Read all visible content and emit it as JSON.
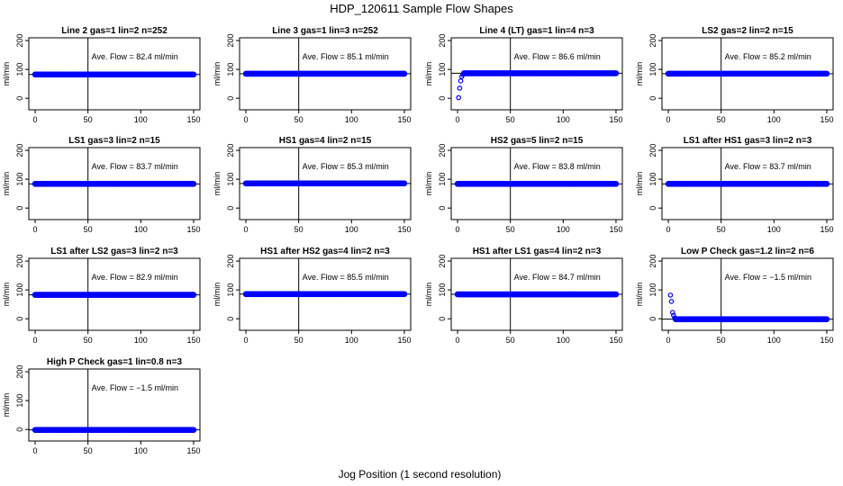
{
  "figure": {
    "title": "HDP_120611  Sample Flow Shapes",
    "xlabel": "Jog Position (1 second resolution)"
  },
  "colors": {
    "points": "#0000ff",
    "lines": "#000000",
    "background": "#ffffff"
  },
  "chart_data": [
    {
      "type": "scatter",
      "title": "Line 2 gas=1 lin=2 n=252",
      "ylabel": "ml/min",
      "annotation": "Ave. Flow =  82.4  ml/min",
      "xlim": [
        0,
        150
      ],
      "ylim": [
        0,
        200
      ],
      "xticks": [
        0,
        50,
        100,
        150
      ],
      "yticks": [
        0,
        100,
        200
      ],
      "vline": 50,
      "hline": 82.4,
      "ramp": []
    },
    {
      "type": "scatter",
      "title": "Line 3 gas=1 lin=3 n=252",
      "ylabel": "ml/min",
      "annotation": "Ave. Flow =  85.1  ml/min",
      "xlim": [
        0,
        150
      ],
      "ylim": [
        0,
        200
      ],
      "xticks": [
        0,
        50,
        100,
        150
      ],
      "yticks": [
        0,
        100,
        200
      ],
      "vline": 50,
      "hline": 85.1,
      "ramp": []
    },
    {
      "type": "scatter",
      "title": "Line 4 (LT) gas=1 lin=4 n=3",
      "ylabel": "ml/min",
      "annotation": "Ave. Flow =  86.6  ml/min",
      "xlim": [
        0,
        150
      ],
      "ylim": [
        0,
        200
      ],
      "xticks": [
        0,
        50,
        100,
        150
      ],
      "yticks": [
        0,
        100,
        200
      ],
      "vline": 50,
      "hline": 86.6,
      "ramp": [
        [
          1,
          2
        ],
        [
          2,
          35
        ],
        [
          3,
          60
        ],
        [
          4,
          75
        ],
        [
          5,
          82
        ]
      ]
    },
    {
      "type": "scatter",
      "title": "LS2 gas=2 lin=2 n=15",
      "ylabel": "ml/min",
      "annotation": "Ave. Flow =  85.2  ml/min",
      "xlim": [
        0,
        150
      ],
      "ylim": [
        0,
        200
      ],
      "xticks": [
        0,
        50,
        100,
        150
      ],
      "yticks": [
        0,
        100,
        200
      ],
      "vline": 50,
      "hline": 85.2,
      "ramp": []
    },
    {
      "type": "scatter",
      "title": "LS1 gas=3 lin=2 n=15",
      "ylabel": "ml/min",
      "annotation": "Ave. Flow =  83.7  ml/min",
      "xlim": [
        0,
        150
      ],
      "ylim": [
        0,
        200
      ],
      "xticks": [
        0,
        50,
        100,
        150
      ],
      "yticks": [
        0,
        100,
        200
      ],
      "vline": 50,
      "hline": 83.7,
      "ramp": []
    },
    {
      "type": "scatter",
      "title": "HS1 gas=4 lin=2 n=15",
      "ylabel": "ml/min",
      "annotation": "Ave. Flow =  85.3  ml/min",
      "xlim": [
        0,
        150
      ],
      "ylim": [
        0,
        200
      ],
      "xticks": [
        0,
        50,
        100,
        150
      ],
      "yticks": [
        0,
        100,
        200
      ],
      "vline": 50,
      "hline": 85.3,
      "ramp": []
    },
    {
      "type": "scatter",
      "title": "HS2 gas=5 lin=2 n=15",
      "ylabel": "ml/min",
      "annotation": "Ave. Flow =  83.8  ml/min",
      "xlim": [
        0,
        150
      ],
      "ylim": [
        0,
        200
      ],
      "xticks": [
        0,
        50,
        100,
        150
      ],
      "yticks": [
        0,
        100,
        200
      ],
      "vline": 50,
      "hline": 83.8,
      "ramp": []
    },
    {
      "type": "scatter",
      "title": "LS1 after HS1 gas=3 lin=2 n=3",
      "ylabel": "ml/min",
      "annotation": "Ave. Flow =  83.7  ml/min",
      "xlim": [
        0,
        150
      ],
      "ylim": [
        0,
        200
      ],
      "xticks": [
        0,
        50,
        100,
        150
      ],
      "yticks": [
        0,
        100,
        200
      ],
      "vline": 50,
      "hline": 83.7,
      "ramp": []
    },
    {
      "type": "scatter",
      "title": "LS1 after LS2 gas=3 lin=2 n=3",
      "ylabel": "ml/min",
      "annotation": "Ave. Flow =  82.9  ml/min",
      "xlim": [
        0,
        150
      ],
      "ylim": [
        0,
        200
      ],
      "xticks": [
        0,
        50,
        100,
        150
      ],
      "yticks": [
        0,
        100,
        200
      ],
      "vline": 50,
      "hline": 82.9,
      "ramp": []
    },
    {
      "type": "scatter",
      "title": "HS1 after HS2 gas=4 lin=2 n=3",
      "ylabel": "ml/min",
      "annotation": "Ave. Flow =  85.5  ml/min",
      "xlim": [
        0,
        150
      ],
      "ylim": [
        0,
        200
      ],
      "xticks": [
        0,
        50,
        100,
        150
      ],
      "yticks": [
        0,
        100,
        200
      ],
      "vline": 50,
      "hline": 85.5,
      "ramp": []
    },
    {
      "type": "scatter",
      "title": "HS1 after LS1 gas=4 lin=2 n=3",
      "ylabel": "ml/min",
      "annotation": "Ave. Flow =  84.7  ml/min",
      "xlim": [
        0,
        150
      ],
      "ylim": [
        0,
        200
      ],
      "xticks": [
        0,
        50,
        100,
        150
      ],
      "yticks": [
        0,
        100,
        200
      ],
      "vline": 50,
      "hline": 84.7,
      "ramp": []
    },
    {
      "type": "scatter",
      "title": "Low P Check gas=1.2 lin=2 n=6",
      "ylabel": "ml/min",
      "annotation": "Ave. Flow =  −1.5  ml/min",
      "xlim": [
        0,
        150
      ],
      "ylim": [
        0,
        200
      ],
      "xticks": [
        0,
        50,
        100,
        150
      ],
      "yticks": [
        0,
        100,
        200
      ],
      "vline": 50,
      "hline": -1.5,
      "ramp": [
        [
          2,
          82
        ],
        [
          3,
          60
        ],
        [
          4,
          22
        ],
        [
          5,
          12
        ],
        [
          6,
          3
        ]
      ]
    },
    {
      "type": "scatter",
      "title": "High P Check gas=1 lin=0.8 n=3",
      "ylabel": "ml/min",
      "annotation": "Ave. Flow =  −1.5  ml/min",
      "xlim": [
        0,
        150
      ],
      "ylim": [
        0,
        200
      ],
      "xticks": [
        0,
        50,
        100,
        150
      ],
      "yticks": [
        0,
        100,
        200
      ],
      "vline": 50,
      "hline": -1.5,
      "ramp": []
    }
  ]
}
